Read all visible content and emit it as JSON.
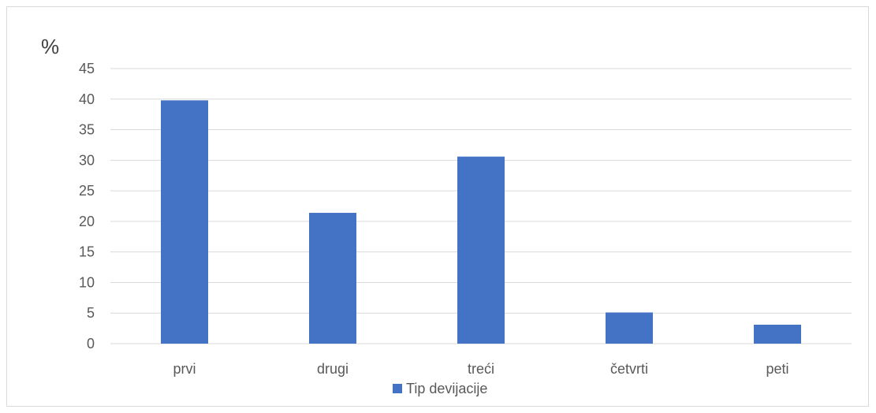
{
  "chart_data": {
    "type": "bar",
    "title": "",
    "xlabel": "",
    "ylabel": "%",
    "categories": [
      "prvi",
      "drugi",
      "treći",
      "četvrti",
      "peti"
    ],
    "series": [
      {
        "name": "Tip devijacije",
        "values": [
          39.8,
          21.4,
          30.6,
          5.1,
          3.1
        ],
        "color": "#4472c4"
      }
    ],
    "ylim": [
      0,
      45
    ],
    "yticks": [
      0,
      5,
      10,
      15,
      20,
      25,
      30,
      35,
      40,
      45
    ],
    "grid": true,
    "legend_position": "bottom"
  }
}
